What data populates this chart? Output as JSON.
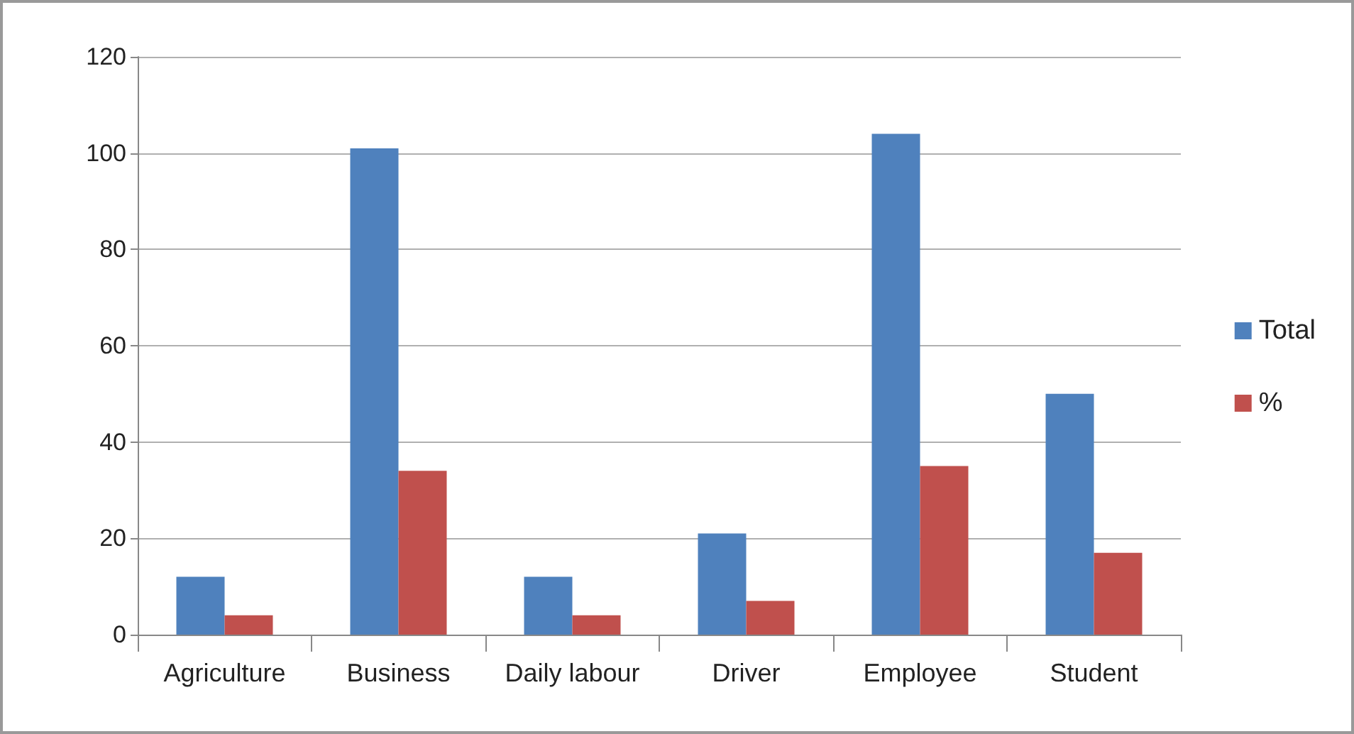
{
  "chart_data": {
    "type": "bar",
    "categories": [
      "Agriculture",
      "Business",
      "Daily labour",
      "Driver",
      "Employee",
      "Student"
    ],
    "series": [
      {
        "name": "Total",
        "color": "#4f81bd",
        "values": [
          12,
          101,
          12,
          21,
          104,
          50
        ]
      },
      {
        "name": "%",
        "color": "#c0504d",
        "values": [
          4,
          34,
          4,
          7,
          35,
          17
        ]
      }
    ],
    "ylim": [
      0,
      120
    ],
    "yticks": [
      0,
      20,
      40,
      60,
      80,
      100,
      120
    ],
    "grid": "y",
    "legend": "right"
  }
}
